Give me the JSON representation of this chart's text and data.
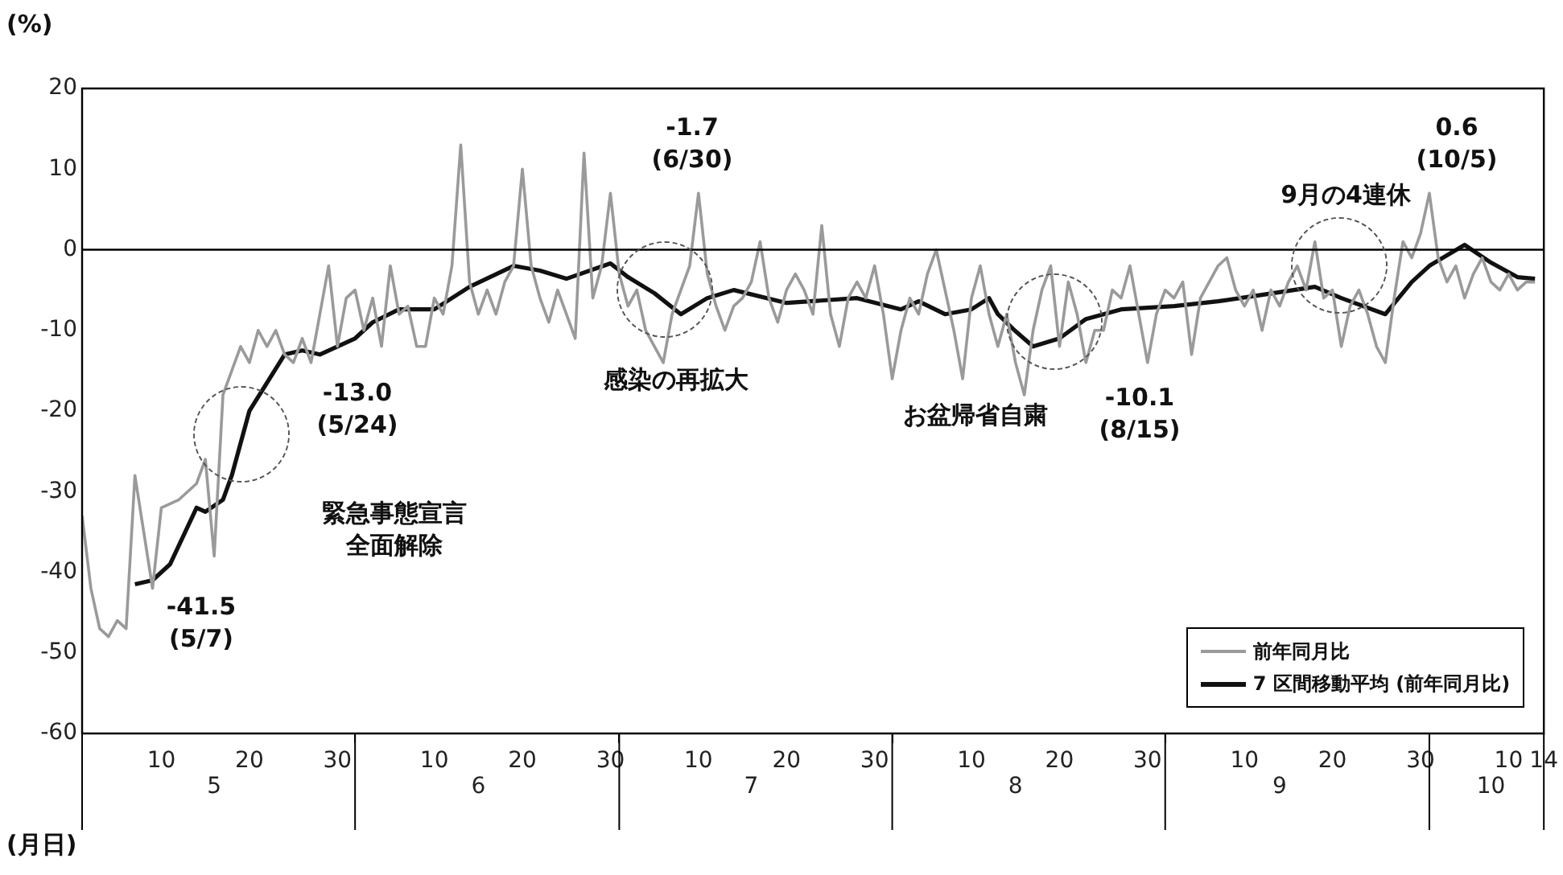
{
  "chart_data": {
    "type": "line",
    "ylabel": "(%)",
    "xlabel": "(月日)",
    "xlim": [
      "--05-01",
      "--10-14"
    ],
    "xticks": [
      {
        "value": "--05-10",
        "label": "10"
      },
      {
        "value": "--05-20",
        "label": "20"
      },
      {
        "value": "--05-30",
        "label": "30"
      },
      {
        "value": "--06-01",
        "label": null
      },
      {
        "value": "--06-10",
        "label": "10"
      },
      {
        "value": "--06-20",
        "label": "20"
      },
      {
        "value": "--06-30",
        "label": "30"
      },
      {
        "value": "--07-01",
        "label": null
      },
      {
        "value": "--07-10",
        "label": "10"
      },
      {
        "value": "--07-20",
        "label": "20"
      },
      {
        "value": "--07-30",
        "label": "30"
      },
      {
        "value": "--08-01",
        "label": null
      },
      {
        "value": "--08-10",
        "label": "10"
      },
      {
        "value": "--08-20",
        "label": "20"
      },
      {
        "value": "--08-30",
        "label": "30"
      },
      {
        "value": "--09-01",
        "label": null
      },
      {
        "value": "--09-10",
        "label": "10"
      },
      {
        "value": "--09-20",
        "label": "20"
      },
      {
        "value": "--09-30",
        "label": "30"
      },
      {
        "value": "--10-01",
        "label": null
      },
      {
        "value": "--10-10",
        "label": "10"
      },
      {
        "value": "--10-14",
        "label": "14"
      }
    ],
    "x2lim": [
      "--05-01",
      "--10-14"
    ],
    "x2ticks": [
      {
        "value": "--05-16",
        "label": "5"
      },
      {
        "value": "--06-15",
        "label": "6"
      },
      {
        "value": "--07-16",
        "label": "7"
      },
      {
        "value": "--08-15",
        "label": "8"
      },
      {
        "value": "--09-14",
        "label": "9"
      },
      {
        "value": "--10-08",
        "label": "10"
      }
    ],
    "ylim": [
      -60,
      20
    ],
    "yticks": [
      -60,
      -50,
      -40,
      -30,
      -20,
      -10,
      0,
      10,
      20
    ],
    "legend": "bottom right",
    "marker": "none",
    "line_style": "solid",
    "ref_lines": [
      {
        "axis": "y",
        "value": 0,
        "color": "#000000"
      }
    ],
    "series": [
      {
        "name": "前年同月比",
        "color": "#9a9a9a",
        "x": [
          "--05-01",
          "--05-02",
          "--05-03",
          "--05-04",
          "--05-05",
          "--05-06",
          "--05-07",
          "--05-08",
          "--05-09",
          "--05-10",
          "--05-12",
          "--05-14",
          "--05-15",
          "--05-16",
          "--05-17",
          "--05-18",
          "--05-19",
          "--05-20",
          "--05-21",
          "--05-22",
          "--05-23",
          "--05-24",
          "--05-25",
          "--05-26",
          "--05-27",
          "--05-28",
          "--05-29",
          "--05-30",
          "--05-31",
          "--06-01",
          "--06-02",
          "--06-03",
          "--06-04",
          "--06-05",
          "--06-06",
          "--06-07",
          "--06-08",
          "--06-09",
          "--06-10",
          "--06-11",
          "--06-12",
          "--06-13",
          "--06-14",
          "--06-15",
          "--06-16",
          "--06-17",
          "--06-18",
          "--06-19",
          "--06-20",
          "--06-21",
          "--06-22",
          "--06-23",
          "--06-24",
          "--06-25",
          "--06-26",
          "--06-27",
          "--06-28",
          "--06-29",
          "--06-30",
          "--07-01",
          "--07-02",
          "--07-03",
          "--07-04",
          "--07-05",
          "--07-06",
          "--07-07",
          "--07-08",
          "--07-09",
          "--07-10",
          "--07-11",
          "--07-12",
          "--07-13",
          "--07-14",
          "--07-15",
          "--07-16",
          "--07-17",
          "--07-18",
          "--07-19",
          "--07-20",
          "--07-21",
          "--07-22",
          "--07-23",
          "--07-24",
          "--07-25",
          "--07-26",
          "--07-27",
          "--07-28",
          "--07-29",
          "--07-30",
          "--07-31",
          "--08-01",
          "--08-02",
          "--08-03",
          "--08-04",
          "--08-05",
          "--08-06",
          "--08-07",
          "--08-08",
          "--08-09",
          "--08-10",
          "--08-11",
          "--08-12",
          "--08-13",
          "--08-14",
          "--08-15",
          "--08-16",
          "--08-17",
          "--08-18",
          "--08-19",
          "--08-20",
          "--08-21",
          "--08-22",
          "--08-23",
          "--08-24",
          "--08-25",
          "--08-26",
          "--08-27",
          "--08-28",
          "--08-29",
          "--08-30",
          "--08-31",
          "--09-01",
          "--09-02",
          "--09-03",
          "--09-04",
          "--09-05",
          "--09-06",
          "--09-07",
          "--09-08",
          "--09-09",
          "--09-10",
          "--09-11",
          "--09-12",
          "--09-13",
          "--09-14",
          "--09-15",
          "--09-16",
          "--09-17",
          "--09-18",
          "--09-19",
          "--09-20",
          "--09-21",
          "--09-22",
          "--09-23",
          "--09-24",
          "--09-25",
          "--09-26",
          "--09-27",
          "--09-28",
          "--09-29",
          "--09-30",
          "--10-01",
          "--10-02",
          "--10-03",
          "--10-04",
          "--10-05",
          "--10-06",
          "--10-07",
          "--10-08",
          "--10-09",
          "--10-10",
          "--10-11",
          "--10-12",
          "--10-13"
        ],
        "values": [
          -33,
          -42,
          -47,
          -48,
          -46,
          -47,
          -28,
          -35,
          -42,
          -32,
          -31,
          -29,
          -26,
          -38,
          -18,
          -15,
          -12,
          -14,
          -10,
          -12,
          -10,
          -13,
          -14,
          -11,
          -14,
          -8,
          -2,
          -12,
          -6,
          -5,
          -10,
          -6,
          -12,
          -2,
          -8,
          -7,
          -12,
          -12,
          -6,
          -8,
          -2,
          13,
          -4,
          -8,
          -5,
          -8,
          -4,
          -2,
          10,
          -2,
          -6,
          -9,
          -5,
          -8,
          -11,
          12,
          -6,
          -2,
          7,
          -3,
          -7,
          -5,
          -10,
          -12,
          -14,
          -8,
          -5,
          -2,
          7,
          -3,
          -7,
          -10,
          -7,
          -6,
          -4,
          1,
          -6,
          -9,
          -5,
          -3,
          -5,
          -8,
          3,
          -8,
          -12,
          -6,
          -4,
          -6,
          -2,
          -8,
          -16,
          -10,
          -6,
          -8,
          -3,
          0,
          -5,
          -10,
          -16,
          -6,
          -2,
          -8,
          -12,
          -8,
          -14,
          -18,
          -10,
          -5,
          -2,
          -12,
          -4,
          -8,
          -14,
          -10,
          -10,
          -5,
          -6,
          -2,
          -8,
          -14,
          -8,
          -5,
          -6,
          -4,
          -13,
          -6,
          -4,
          -2,
          -1,
          -5,
          -7,
          -5,
          -10,
          -5,
          -7,
          -4,
          -2,
          -5,
          1,
          -6,
          -5,
          -12,
          -7,
          -5,
          -8,
          -12,
          -14,
          -6,
          1,
          -1,
          2,
          7,
          -1,
          -4,
          -2,
          -6,
          -3,
          -1,
          -4,
          -5,
          -3,
          -5,
          -4,
          -4
        ]
      },
      {
        "name": "7 区間移動平均 (前年同月比)",
        "color": "#111111",
        "x": [
          "--05-07",
          "--05-09",
          "--05-11",
          "--05-14",
          "--05-15",
          "--05-17",
          "--05-18",
          "--05-20",
          "--05-24",
          "--05-26",
          "--05-28",
          "--06-01",
          "--06-03",
          "--06-06",
          "--06-10",
          "--06-14",
          "--06-19",
          "--06-22",
          "--06-25",
          "--06-30",
          "--07-02",
          "--07-05",
          "--07-08",
          "--07-11",
          "--07-14",
          "--07-20",
          "--07-28",
          "--08-02",
          "--08-04",
          "--08-07",
          "--08-10",
          "--08-12",
          "--08-13",
          "--08-15",
          "--08-17",
          "--08-20",
          "--08-23",
          "--08-27",
          "--09-02",
          "--09-07",
          "--09-12",
          "--09-18",
          "--09-21",
          "--09-26",
          "--09-29",
          "--10-01",
          "--10-05",
          "--10-08",
          "--10-11",
          "--10-13"
        ],
        "values": [
          -41.5,
          -41,
          -39,
          -32,
          -32.5,
          -31,
          -28,
          -20,
          -13.0,
          -12.5,
          -13,
          -11,
          -9,
          -7.4,
          -7.4,
          -4.6,
          -2,
          -2.6,
          -3.6,
          -1.7,
          -3.4,
          -5.4,
          -8,
          -6,
          -5,
          -6.6,
          -6,
          -7.4,
          -6.4,
          -8,
          -7.4,
          -6,
          -8,
          -10.1,
          -12,
          -11,
          -8.6,
          -7.4,
          -7,
          -6.4,
          -5.6,
          -4.6,
          -6,
          -8,
          -4,
          -2,
          0.6,
          -1.6,
          -3.4,
          -3.6
        ]
      }
    ],
    "annotations": [
      "-41.5\n(5/7)",
      "-13.0\n(5/24)",
      "緊急事態宣言全面解除",
      "-1.7\n(6/30)",
      "感染の再拡大",
      "お盆帰省自粛",
      "-10.1\n(8/15)",
      "9月の4連休",
      "0.6\n(10/5)"
    ]
  }
}
